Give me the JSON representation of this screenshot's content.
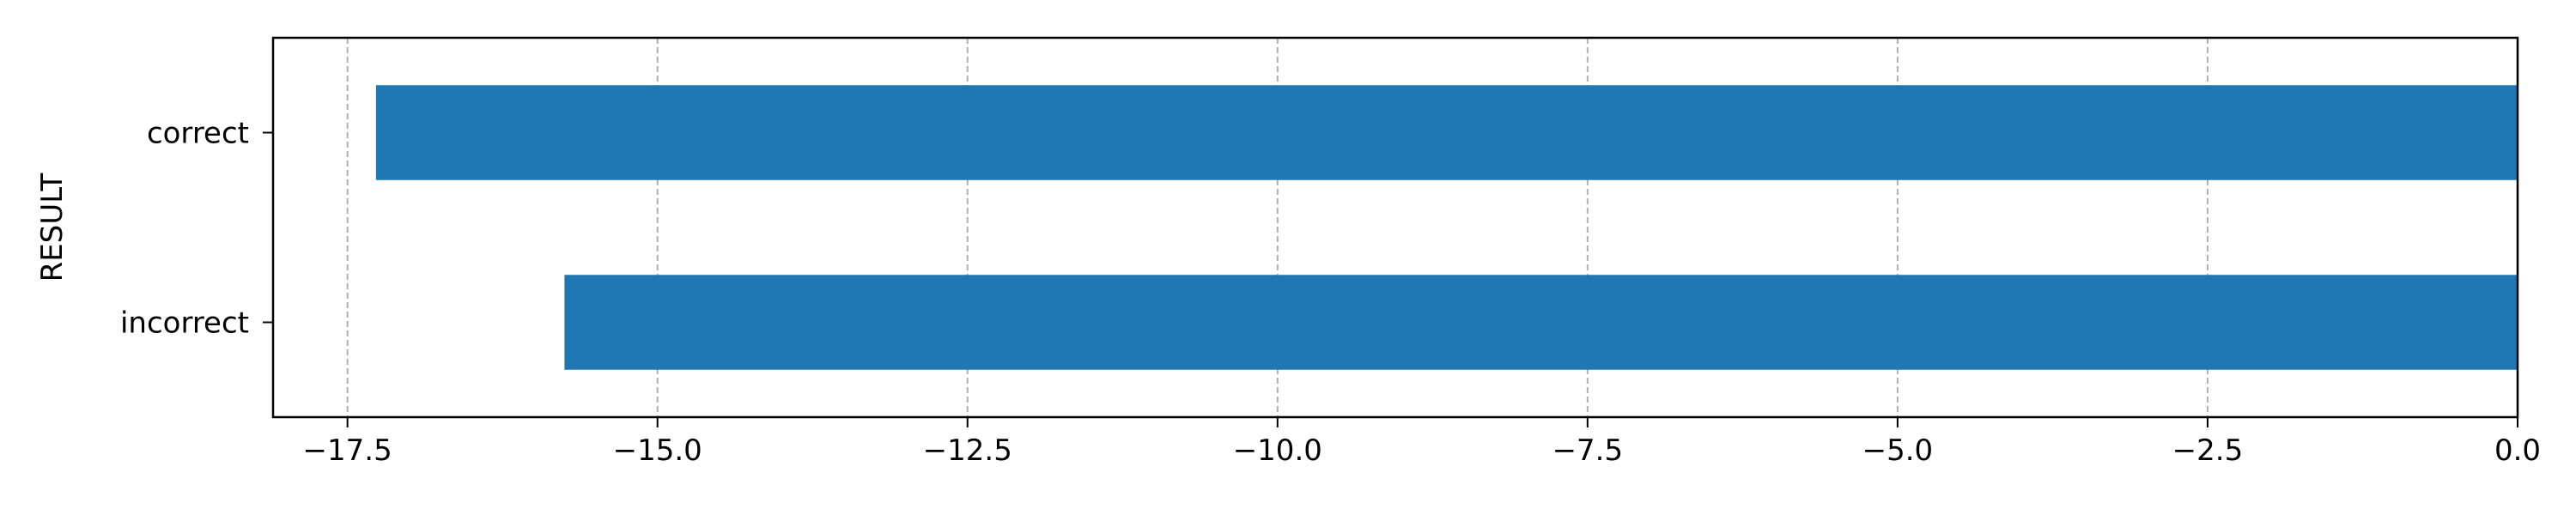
{
  "chart_data": {
    "type": "bar",
    "orientation": "horizontal",
    "categories": [
      "correct",
      "incorrect"
    ],
    "values": [
      -17.27,
      -15.75
    ],
    "title": "",
    "xlabel": "",
    "ylabel": "RESULT",
    "xlim": [
      -18.1,
      0.0
    ],
    "xticks": [
      -17.5,
      -15.0,
      -12.5,
      -10.0,
      -7.5,
      -5.0,
      -2.5,
      0.0
    ],
    "xtick_labels": [
      "−17.5",
      "−15.0",
      "−12.5",
      "−10.0",
      "−7.5",
      "−5.0",
      "−2.5",
      "0.0"
    ],
    "grid": "x-axis dashed",
    "bar_color": "#1f77b4",
    "grid_color": "#b0b0b0"
  }
}
